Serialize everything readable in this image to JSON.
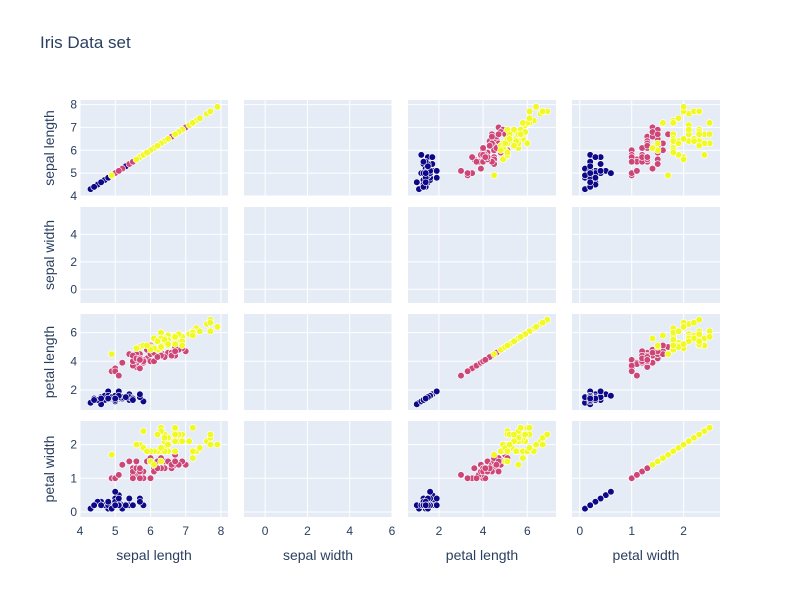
{
  "chart_data": {
    "type": "scatter",
    "title": "Iris Data set",
    "dimensions": [
      "sepal length",
      "sepal width",
      "petal length",
      "petal width"
    ],
    "axis_ranges": {
      "sepal length": [
        4,
        8.2
      ],
      "sepal width": [
        -1,
        6
      ],
      "petal length": [
        0.6,
        7.3
      ],
      "petal width": [
        -0.15,
        2.7
      ]
    },
    "x_ticks": {
      "sepal length": [
        4,
        5,
        6,
        7,
        8
      ],
      "sepal width": [
        0,
        2,
        4,
        6
      ],
      "petal length": [
        2,
        4,
        6
      ],
      "petal width": [
        0,
        1,
        2
      ]
    },
    "y_ticks": {
      "sepal length": [
        4,
        5,
        6,
        7,
        8
      ],
      "sepal width": [
        0,
        2,
        4
      ],
      "petal length": [
        2,
        4,
        6
      ],
      "petal width": [
        0,
        1,
        2
      ]
    },
    "show_x_tick_labels_on": "bottom row",
    "show_y_tick_labels_on": "left column",
    "grid": true,
    "diagonal_visible": true,
    "sepal_width_points_shown": false,
    "legend": "none",
    "colors": {
      "plot_bg": "#e5ecf6",
      "grid": "#ffffff",
      "text": "#2a3f5f",
      "marker_outline": "#ffffff"
    },
    "series": [
      {
        "color": "#0d0887",
        "points": [
          [
            5.1,
            1.4,
            0.2
          ],
          [
            4.9,
            1.4,
            0.2
          ],
          [
            4.7,
            1.3,
            0.2
          ],
          [
            4.6,
            1.5,
            0.2
          ],
          [
            5.0,
            1.4,
            0.2
          ],
          [
            5.4,
            1.7,
            0.4
          ],
          [
            4.6,
            1.4,
            0.3
          ],
          [
            5.0,
            1.5,
            0.2
          ],
          [
            4.4,
            1.4,
            0.2
          ],
          [
            4.9,
            1.5,
            0.1
          ],
          [
            5.4,
            1.5,
            0.2
          ],
          [
            4.8,
            1.6,
            0.2
          ],
          [
            4.8,
            1.4,
            0.1
          ],
          [
            4.3,
            1.1,
            0.1
          ],
          [
            5.8,
            1.2,
            0.2
          ],
          [
            5.7,
            1.5,
            0.4
          ],
          [
            5.4,
            1.3,
            0.4
          ],
          [
            5.1,
            1.4,
            0.3
          ],
          [
            5.7,
            1.7,
            0.3
          ],
          [
            5.1,
            1.5,
            0.3
          ],
          [
            5.4,
            1.7,
            0.2
          ],
          [
            5.1,
            1.5,
            0.4
          ],
          [
            4.6,
            1.0,
            0.2
          ],
          [
            5.1,
            1.7,
            0.5
          ],
          [
            4.8,
            1.9,
            0.2
          ],
          [
            5.0,
            1.6,
            0.2
          ],
          [
            5.0,
            1.6,
            0.4
          ],
          [
            5.2,
            1.5,
            0.2
          ],
          [
            5.2,
            1.4,
            0.2
          ],
          [
            4.7,
            1.6,
            0.2
          ],
          [
            4.8,
            1.6,
            0.2
          ],
          [
            5.4,
            1.5,
            0.4
          ],
          [
            5.2,
            1.5,
            0.1
          ],
          [
            5.5,
            1.4,
            0.2
          ],
          [
            4.9,
            1.5,
            0.1
          ],
          [
            5.0,
            1.2,
            0.2
          ],
          [
            5.5,
            1.3,
            0.2
          ],
          [
            4.9,
            1.5,
            0.1
          ],
          [
            4.4,
            1.3,
            0.2
          ],
          [
            5.1,
            1.5,
            0.2
          ],
          [
            5.0,
            1.3,
            0.3
          ],
          [
            4.5,
            1.3,
            0.3
          ],
          [
            4.4,
            1.3,
            0.2
          ],
          [
            5.0,
            1.6,
            0.6
          ],
          [
            5.1,
            1.9,
            0.4
          ],
          [
            4.8,
            1.4,
            0.3
          ],
          [
            5.1,
            1.6,
            0.2
          ],
          [
            4.6,
            1.4,
            0.2
          ],
          [
            5.3,
            1.5,
            0.2
          ],
          [
            5.0,
            1.4,
            0.2
          ]
        ]
      },
      {
        "color": "#cc4778",
        "points": [
          [
            7.0,
            4.7,
            1.4
          ],
          [
            6.4,
            4.5,
            1.5
          ],
          [
            6.9,
            4.9,
            1.5
          ],
          [
            5.5,
            4.0,
            1.3
          ],
          [
            6.5,
            4.6,
            1.5
          ],
          [
            5.7,
            4.5,
            1.3
          ],
          [
            6.3,
            4.7,
            1.6
          ],
          [
            4.9,
            3.3,
            1.0
          ],
          [
            6.6,
            4.6,
            1.3
          ],
          [
            5.2,
            3.9,
            1.4
          ],
          [
            5.0,
            3.5,
            1.0
          ],
          [
            5.9,
            4.2,
            1.5
          ],
          [
            6.0,
            4.0,
            1.0
          ],
          [
            6.1,
            4.7,
            1.4
          ],
          [
            5.6,
            3.6,
            1.3
          ],
          [
            6.7,
            4.4,
            1.4
          ],
          [
            5.6,
            4.5,
            1.5
          ],
          [
            5.8,
            4.1,
            1.0
          ],
          [
            6.2,
            4.5,
            1.5
          ],
          [
            5.6,
            3.9,
            1.1
          ],
          [
            5.9,
            4.8,
            1.8
          ],
          [
            6.1,
            4.0,
            1.3
          ],
          [
            6.3,
            4.9,
            1.5
          ],
          [
            6.1,
            4.7,
            1.2
          ],
          [
            6.4,
            4.3,
            1.3
          ],
          [
            6.6,
            4.4,
            1.4
          ],
          [
            6.8,
            4.8,
            1.4
          ],
          [
            6.7,
            5.0,
            1.7
          ],
          [
            6.0,
            4.5,
            1.5
          ],
          [
            5.7,
            3.5,
            1.0
          ],
          [
            5.5,
            3.8,
            1.1
          ],
          [
            5.5,
            3.7,
            1.0
          ],
          [
            5.8,
            3.9,
            1.2
          ],
          [
            6.0,
            5.1,
            1.6
          ],
          [
            5.4,
            4.5,
            1.5
          ],
          [
            6.0,
            4.5,
            1.6
          ],
          [
            6.7,
            4.7,
            1.5
          ],
          [
            6.3,
            4.4,
            1.3
          ],
          [
            5.6,
            4.1,
            1.3
          ],
          [
            5.5,
            4.0,
            1.3
          ],
          [
            5.5,
            4.4,
            1.2
          ],
          [
            6.1,
            4.6,
            1.4
          ],
          [
            5.8,
            4.0,
            1.2
          ],
          [
            5.0,
            3.3,
            1.0
          ],
          [
            5.6,
            4.2,
            1.3
          ],
          [
            5.7,
            4.2,
            1.2
          ],
          [
            5.7,
            4.2,
            1.3
          ],
          [
            6.2,
            4.3,
            1.3
          ],
          [
            5.1,
            3.0,
            1.1
          ],
          [
            5.7,
            4.1,
            1.3
          ]
        ]
      },
      {
        "color": "#f0f921",
        "points": [
          [
            6.3,
            6.0,
            2.5
          ],
          [
            5.8,
            5.1,
            1.9
          ],
          [
            7.1,
            5.9,
            2.1
          ],
          [
            6.3,
            5.6,
            1.8
          ],
          [
            6.5,
            5.8,
            2.2
          ],
          [
            7.6,
            6.6,
            2.1
          ],
          [
            4.9,
            4.5,
            1.7
          ],
          [
            7.3,
            6.3,
            1.8
          ],
          [
            6.7,
            5.8,
            1.8
          ],
          [
            7.2,
            6.1,
            2.5
          ],
          [
            6.5,
            5.1,
            2.0
          ],
          [
            6.4,
            5.3,
            1.9
          ],
          [
            6.8,
            5.5,
            2.1
          ],
          [
            5.7,
            5.0,
            2.0
          ],
          [
            5.8,
            5.1,
            2.4
          ],
          [
            6.4,
            5.3,
            2.3
          ],
          [
            6.5,
            5.5,
            1.8
          ],
          [
            7.7,
            6.7,
            2.2
          ],
          [
            7.7,
            6.9,
            2.3
          ],
          [
            6.0,
            5.0,
            1.5
          ],
          [
            6.9,
            5.7,
            2.3
          ],
          [
            5.6,
            4.9,
            2.0
          ],
          [
            7.7,
            6.7,
            2.0
          ],
          [
            6.3,
            4.9,
            1.8
          ],
          [
            6.7,
            5.7,
            2.1
          ],
          [
            7.2,
            6.0,
            1.8
          ],
          [
            6.2,
            4.8,
            1.8
          ],
          [
            6.1,
            4.9,
            1.8
          ],
          [
            6.4,
            5.6,
            2.1
          ],
          [
            7.2,
            5.8,
            1.6
          ],
          [
            7.4,
            6.1,
            1.9
          ],
          [
            7.9,
            6.4,
            2.0
          ],
          [
            6.4,
            5.6,
            2.2
          ],
          [
            6.3,
            5.1,
            1.5
          ],
          [
            6.1,
            5.6,
            1.4
          ],
          [
            7.7,
            6.1,
            2.3
          ],
          [
            6.3,
            5.6,
            2.4
          ],
          [
            6.4,
            5.5,
            1.8
          ],
          [
            6.0,
            4.8,
            1.8
          ],
          [
            6.9,
            5.4,
            2.1
          ],
          [
            6.7,
            5.6,
            2.4
          ],
          [
            6.9,
            5.1,
            2.3
          ],
          [
            5.8,
            5.1,
            1.9
          ],
          [
            6.8,
            5.9,
            2.3
          ],
          [
            6.7,
            5.7,
            2.5
          ],
          [
            6.7,
            5.2,
            2.3
          ],
          [
            6.3,
            5.0,
            1.9
          ],
          [
            6.5,
            5.2,
            2.0
          ],
          [
            6.2,
            5.4,
            2.3
          ],
          [
            5.9,
            5.1,
            1.8
          ]
        ]
      }
    ]
  }
}
